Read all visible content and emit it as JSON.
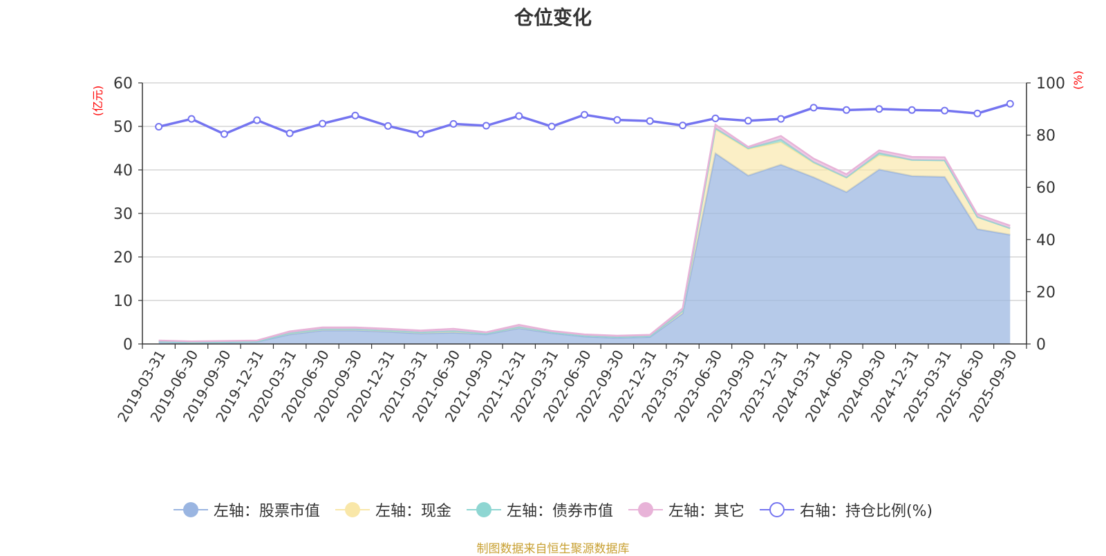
{
  "title": "仓位变化",
  "source": "制图数据来自恒生聚源数据库",
  "colors": {
    "stock": "#9ab5e1",
    "cash": "#f9e7a8",
    "bond": "#8ed6d2",
    "other": "#e8b3d8",
    "ratio": "#7474f0",
    "axis_label": "#ff0000"
  },
  "legend": [
    {
      "key": "stock",
      "label": "左轴：股票市值",
      "icon": "filled-circle-icon"
    },
    {
      "key": "cash",
      "label": "左轴：现金",
      "icon": "filled-circle-icon"
    },
    {
      "key": "bond",
      "label": "左轴：债券市值",
      "icon": "filled-circle-icon"
    },
    {
      "key": "other",
      "label": "左轴：其它",
      "icon": "filled-circle-icon"
    },
    {
      "key": "ratio",
      "label": "右轴：持仓比例(%)",
      "icon": "hollow-circle-icon"
    }
  ],
  "chart_data": {
    "type": "area",
    "stacked": true,
    "title": "仓位变化",
    "ylabel_left": "(亿元)",
    "ylabel_right": "(%)",
    "ylim_left": [
      0,
      60
    ],
    "yticks_left": [
      0,
      10,
      20,
      30,
      40,
      50,
      60
    ],
    "ylim_right": [
      0,
      100
    ],
    "yticks_right": [
      0,
      20,
      40,
      60,
      80,
      100
    ],
    "grid": true,
    "legend_position": "bottom",
    "x": [
      "2019-03-31",
      "2019-06-30",
      "2019-09-30",
      "2019-12-31",
      "2020-03-31",
      "2020-06-30",
      "2020-09-30",
      "2020-12-31",
      "2021-03-31",
      "2021-06-30",
      "2021-09-30",
      "2021-12-31",
      "2022-03-31",
      "2022-06-30",
      "2022-09-30",
      "2022-12-31",
      "2023-03-31",
      "2023-06-30",
      "2023-09-30",
      "2023-12-31",
      "2024-03-31",
      "2024-06-30",
      "2024-09-30",
      "2024-12-31",
      "2025-03-31",
      "2025-06-30",
      "2025-09-30"
    ],
    "series": [
      {
        "name": "左轴：股票市值",
        "key": "stock",
        "axis": "left",
        "values": [
          0.5,
          0.3,
          0.4,
          0.5,
          2.2,
          3.1,
          3.1,
          2.8,
          2.4,
          2.6,
          2.2,
          3.6,
          2.5,
          1.7,
          1.4,
          1.6,
          7.0,
          43.8,
          38.7,
          41.2,
          38.3,
          34.9,
          40.1,
          38.6,
          38.4,
          26.4,
          25.1
        ]
      },
      {
        "name": "左轴：现金",
        "key": "cash",
        "axis": "left",
        "values": [
          0.1,
          0.1,
          0.1,
          0.1,
          0.3,
          0.3,
          0.3,
          0.3,
          0.3,
          0.4,
          0.2,
          0.3,
          0.2,
          0.2,
          0.2,
          0.2,
          0.6,
          5.5,
          6.1,
          5.2,
          3.3,
          3.3,
          3.3,
          3.7,
          3.8,
          2.8,
          1.5
        ]
      },
      {
        "name": "左轴：债券市值",
        "key": "bond",
        "axis": "left",
        "values": [
          0,
          0,
          0,
          0,
          0,
          0,
          0,
          0,
          0,
          0,
          0,
          0,
          0,
          0,
          0,
          0,
          0,
          0.3,
          0.2,
          0.6,
          0.2,
          0.1,
          0.5,
          0,
          0,
          0,
          0
        ]
      },
      {
        "name": "左轴：其它",
        "key": "other",
        "axis": "left",
        "values": [
          0.2,
          0.2,
          0.2,
          0.2,
          0.4,
          0.4,
          0.4,
          0.4,
          0.4,
          0.5,
          0.3,
          0.5,
          0.3,
          0.3,
          0.3,
          0.3,
          0.6,
          0.8,
          0.3,
          0.8,
          0.8,
          0.7,
          0.6,
          0.7,
          0.7,
          0.6,
          0.6
        ]
      },
      {
        "name": "右轴：持仓比例(%)",
        "key": "ratio",
        "axis": "right",
        "type": "line",
        "values": [
          83.2,
          86.2,
          80.4,
          85.7,
          80.7,
          84.4,
          87.5,
          83.5,
          80.5,
          84.3,
          83.6,
          87.3,
          83.3,
          87.8,
          85.8,
          85.4,
          83.7,
          86.4,
          85.5,
          86.2,
          90.5,
          89.6,
          90.0,
          89.6,
          89.4,
          88.3,
          92.0
        ]
      }
    ]
  }
}
